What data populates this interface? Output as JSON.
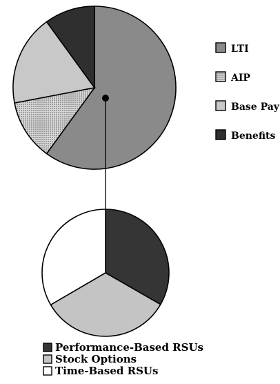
{
  "chart_data": [
    {
      "type": "pie",
      "title": "",
      "slices": [
        {
          "label": "LTI",
          "value": 60,
          "color": "#8a8a8a",
          "pattern": "solid"
        },
        {
          "label": "AIP",
          "value": 12,
          "color": "#cfcfcf",
          "pattern": "dotted"
        },
        {
          "label": "Base Pay",
          "value": 18,
          "color": "#c8c8c8",
          "pattern": "solid"
        },
        {
          "label": "Benefits",
          "value": 10,
          "color": "#2f2f2f",
          "pattern": "solid"
        }
      ],
      "legend_position": "right"
    },
    {
      "type": "pie",
      "title": "",
      "slices": [
        {
          "label": "Performance-Based RSUs",
          "value": 33.3,
          "color": "#353535",
          "pattern": "solid"
        },
        {
          "label": "Stock Options",
          "value": 33.3,
          "color": "#c4c4c4",
          "pattern": "solid"
        },
        {
          "label": "Time-Based RSUs",
          "value": 33.4,
          "color": "#ffffff",
          "pattern": "solid"
        }
      ],
      "legend_position": "bottom"
    }
  ]
}
